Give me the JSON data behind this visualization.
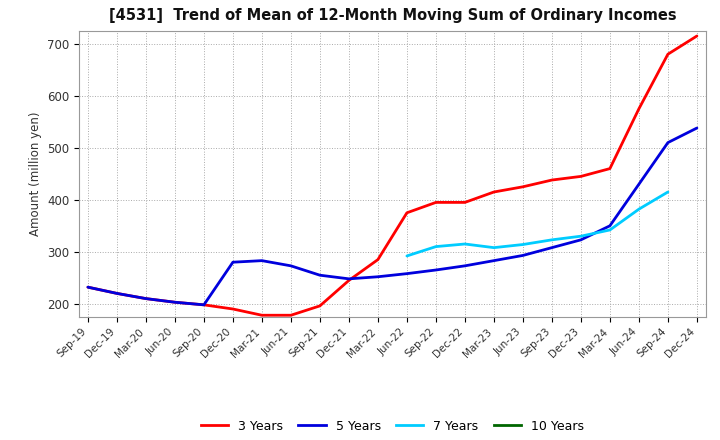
{
  "title": "[4531]  Trend of Mean of 12-Month Moving Sum of Ordinary Incomes",
  "ylabel": "Amount (million yen)",
  "background_color": "#ffffff",
  "grid_color": "#aaaaaa",
  "ylim": [
    175,
    725
  ],
  "yticks": [
    200,
    300,
    400,
    500,
    600,
    700
  ],
  "x_labels": [
    "Sep-19",
    "Dec-19",
    "Mar-20",
    "Jun-20",
    "Sep-20",
    "Dec-20",
    "Mar-21",
    "Jun-21",
    "Sep-21",
    "Dec-21",
    "Mar-22",
    "Jun-22",
    "Sep-22",
    "Dec-22",
    "Mar-23",
    "Jun-23",
    "Sep-23",
    "Dec-23",
    "Mar-24",
    "Jun-24",
    "Sep-24",
    "Dec-24"
  ],
  "series": {
    "3 Years": {
      "color": "#ff0000",
      "values": [
        232,
        220,
        210,
        203,
        198,
        190,
        178,
        178,
        196,
        245,
        285,
        375,
        395,
        395,
        415,
        425,
        438,
        445,
        460,
        575,
        680,
        715
      ]
    },
    "5 Years": {
      "color": "#0000dd",
      "values": [
        232,
        220,
        210,
        203,
        198,
        280,
        283,
        273,
        255,
        248,
        252,
        258,
        265,
        273,
        283,
        293,
        308,
        323,
        350,
        430,
        510,
        538
      ]
    },
    "7 Years": {
      "color": "#00ccff",
      "values": [
        null,
        null,
        null,
        null,
        null,
        null,
        null,
        null,
        null,
        null,
        null,
        292,
        310,
        315,
        308,
        314,
        323,
        330,
        342,
        382,
        415,
        null
      ]
    },
    "10 Years": {
      "color": "#006600",
      "values": [
        null,
        null,
        null,
        null,
        null,
        null,
        null,
        null,
        null,
        null,
        null,
        null,
        null,
        null,
        null,
        null,
        null,
        null,
        null,
        null,
        null,
        null
      ]
    }
  },
  "legend_order": [
    "3 Years",
    "5 Years",
    "7 Years",
    "10 Years"
  ],
  "legend_colors": {
    "3 Years": "#ff0000",
    "5 Years": "#0000dd",
    "7 Years": "#00ccff",
    "10 Years": "#006600"
  }
}
